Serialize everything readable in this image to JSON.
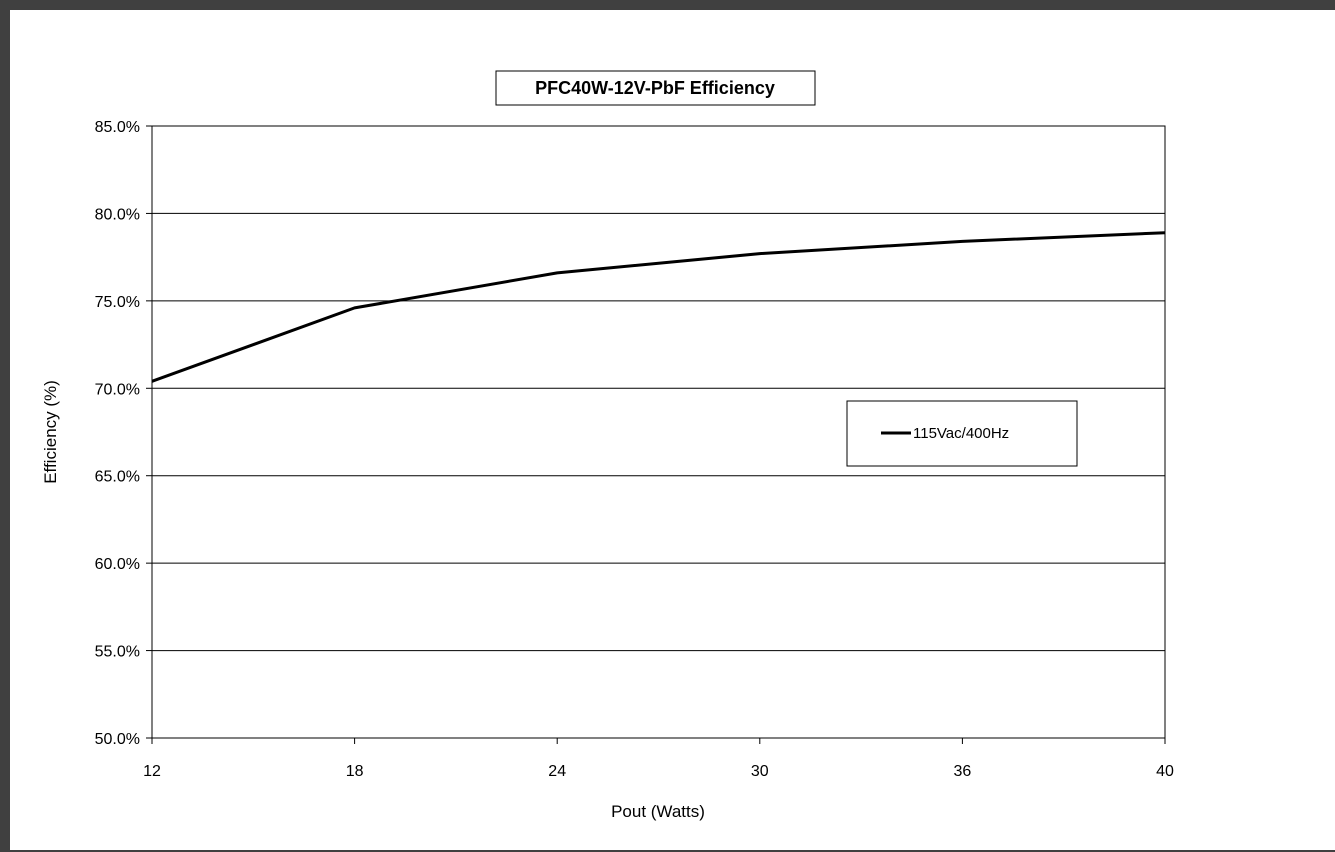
{
  "chart_data": {
    "type": "line",
    "title": "PFC40W-12V-PbF Efficiency",
    "xlabel": "Pout (Watts)",
    "ylabel": "Efficiency (%)",
    "x_ticks": [
      "12",
      "18",
      "24",
      "30",
      "36",
      "40"
    ],
    "y_ticks": [
      "50.0%",
      "55.0%",
      "60.0%",
      "65.0%",
      "70.0%",
      "75.0%",
      "80.0%",
      "85.0%"
    ],
    "ylim": [
      50,
      85
    ],
    "grid": "horizontal",
    "legend_position": "right-middle",
    "series": [
      {
        "name": "115Vac/400Hz",
        "color": "#000000",
        "x": [
          "12",
          "18",
          "24",
          "30",
          "36",
          "40"
        ],
        "values": [
          70.4,
          74.6,
          76.6,
          77.7,
          78.4,
          78.9
        ]
      }
    ]
  }
}
